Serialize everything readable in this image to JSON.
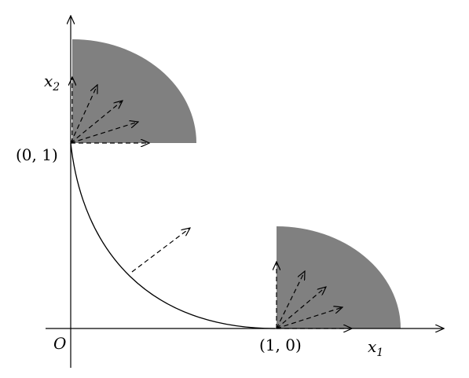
{
  "labels": {
    "origin": "O",
    "point_a": "(0, 1)",
    "point_b": "(1, 0)",
    "x_axis": {
      "base": "x",
      "sub": "1"
    },
    "y_axis": {
      "base": "x",
      "sub": "2"
    }
  }
}
